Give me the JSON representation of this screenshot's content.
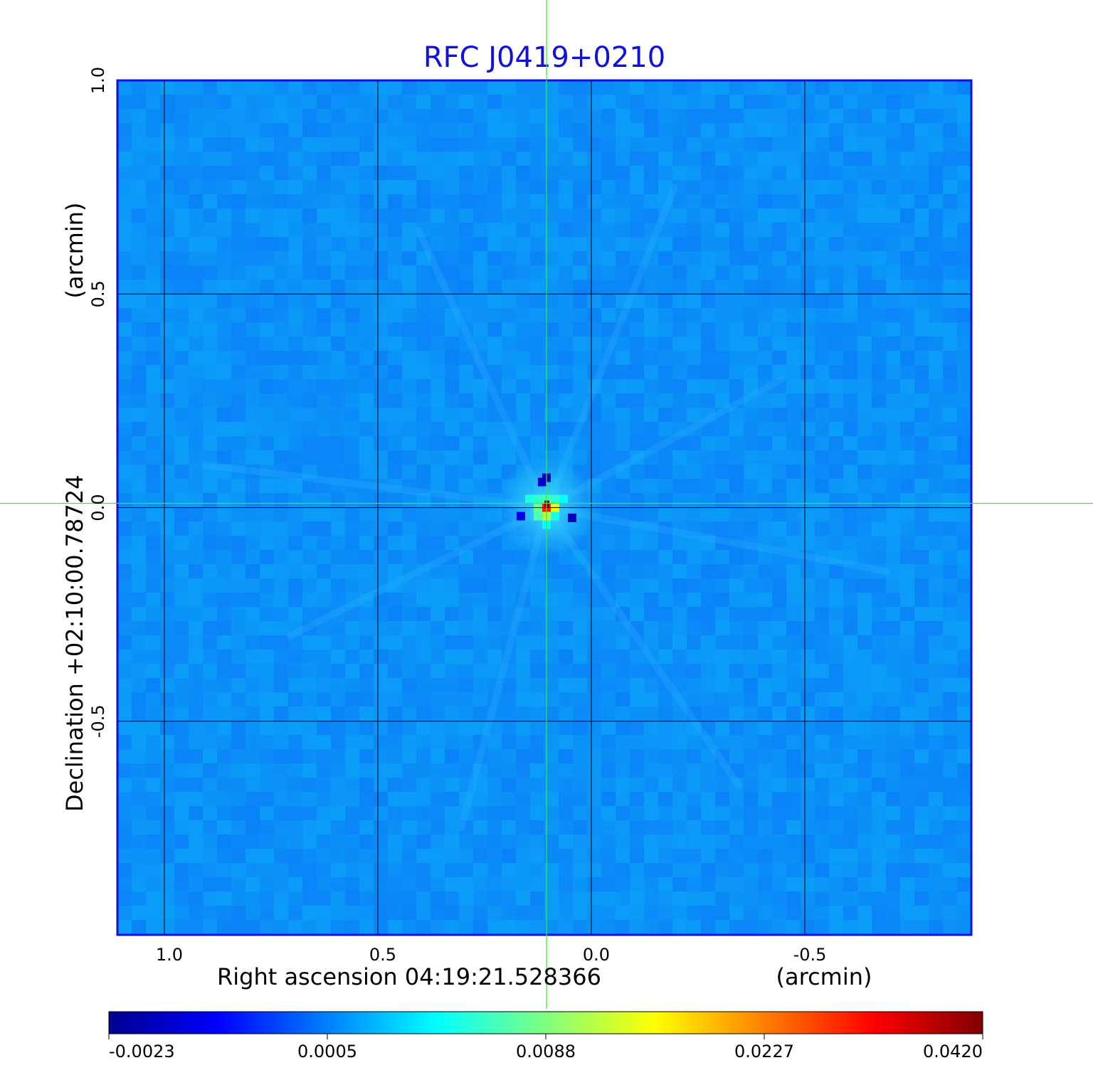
{
  "chart_data": {
    "type": "heatmap",
    "title": "RFC J0419+0210",
    "xlabel": "Right ascension  04:19:21.528366",
    "xlabel_unit": "(arcmin)",
    "ylabel": "Declination  +02:10:00.78724",
    "ylabel_unit": "(arcmin)",
    "x_ticks": [
      {
        "value": 1.0,
        "label": "1.0"
      },
      {
        "value": 0.5,
        "label": "0.5"
      },
      {
        "value": 0.0,
        "label": "0.0"
      },
      {
        "value": -0.5,
        "label": "-0.5"
      }
    ],
    "y_ticks": [
      {
        "value": 1.0,
        "label": "1.0"
      },
      {
        "value": 0.5,
        "label": "0.5"
      },
      {
        "value": 0.0,
        "label": "0.0"
      },
      {
        "value": -0.5,
        "label": "-0.5"
      }
    ],
    "xlim": [
      1.11,
      -0.89
    ],
    "ylim": [
      -1.0,
      1.0
    ],
    "x_reversed": true,
    "grid": true,
    "crosshair": {
      "x": 0.105,
      "y": 0.01
    },
    "source_peak": {
      "x": 0.105,
      "y": 0.0,
      "value": 0.042
    },
    "colormap": "jet",
    "colorbar": {
      "ticks": [
        {
          "value": -0.0023,
          "label": "-0.0023"
        },
        {
          "value": 0.0005,
          "label": "0.0005"
        },
        {
          "value": 0.0088,
          "label": "0.0088"
        },
        {
          "value": 0.0227,
          "label": "0.0227"
        },
        {
          "value": 0.042,
          "label": "0.0420"
        }
      ],
      "range": [
        -0.0023,
        0.042
      ]
    },
    "colors": {
      "title": "#1010dd",
      "frame": "#1010dd",
      "grid": "#000000",
      "crosshair": "#33ee33",
      "background_field": "#1a8cf0"
    }
  }
}
